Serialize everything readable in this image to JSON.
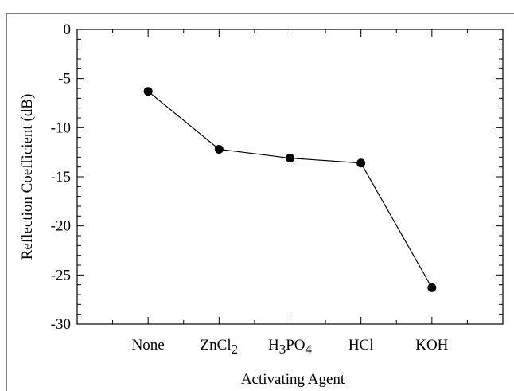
{
  "chart_data": {
    "type": "line",
    "title": "",
    "xlabel": "Activating Agent",
    "ylabel": "Reflection Coefficient (dB)",
    "categories": [
      {
        "base": "None",
        "parts": [
          {
            "t": "None",
            "sub": false
          }
        ]
      },
      {
        "base": "ZnCl2",
        "parts": [
          {
            "t": "ZnCl",
            "sub": false
          },
          {
            "t": "2",
            "sub": true
          }
        ]
      },
      {
        "base": "H3PO4",
        "parts": [
          {
            "t": "H",
            "sub": false
          },
          {
            "t": "3",
            "sub": true
          },
          {
            "t": "PO",
            "sub": false
          },
          {
            "t": "4",
            "sub": true
          }
        ]
      },
      {
        "base": "HCl",
        "parts": [
          {
            "t": "HCl",
            "sub": false
          }
        ]
      },
      {
        "base": "KOH",
        "parts": [
          {
            "t": "KOH",
            "sub": false
          }
        ]
      }
    ],
    "values": [
      -6.3,
      -12.2,
      -13.1,
      -13.6,
      -26.3
    ],
    "ylim": [
      -30,
      0
    ],
    "yticks": [
      0,
      -5,
      -10,
      -15,
      -20,
      -25,
      -30
    ],
    "y_minor_step": 1,
    "grid": false,
    "marker": "filled-circle"
  }
}
